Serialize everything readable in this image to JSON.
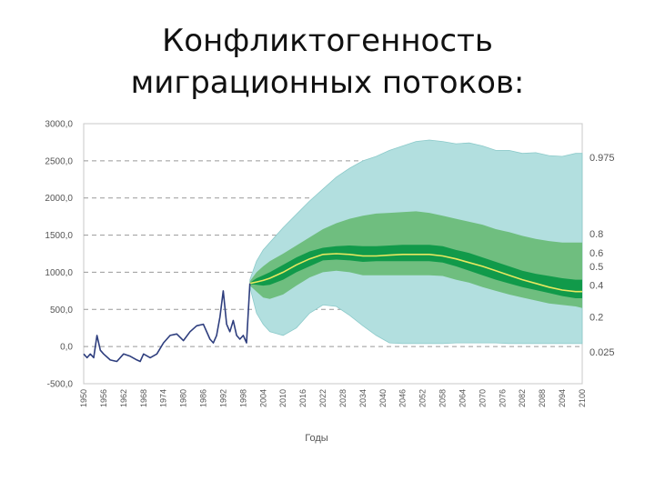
{
  "slide": {
    "title_line1": "Конфликтогенность",
    "title_line2": "миграционных потоков:"
  },
  "colors": {
    "band_outer": "#b2dfdf",
    "band_mid": "#6fbe7f",
    "band_inner": "#119a4a",
    "median": "#e8e860",
    "history": "#2e3e7e",
    "grid": "#999999",
    "frame": "#c8c8c8"
  },
  "chart_data": {
    "type": "area",
    "title": "",
    "xlabel": "Годы",
    "ylabel": "",
    "xlim": [
      1950,
      2100
    ],
    "ylim": [
      -500,
      3000
    ],
    "grid": "dashed horizontal",
    "y_ticks": [
      "3000,0",
      "2500,0",
      "2000,0",
      "1500,0",
      "1000,0",
      "500,0",
      "0,0",
      "-500,0"
    ],
    "y_tick_values": [
      3000,
      2500,
      2000,
      1500,
      1000,
      500,
      0,
      -500
    ],
    "x_ticks": [
      "1950",
      "1956",
      "1962",
      "1968",
      "1974",
      "1980",
      "1986",
      "1992",
      "1998",
      "2004",
      "2010",
      "2016",
      "2022",
      "2028",
      "2034",
      "2040",
      "2046",
      "2052",
      "2058",
      "2064",
      "2070",
      "2076",
      "2082",
      "2088",
      "2094",
      "2100"
    ],
    "historical": {
      "name": "",
      "x": [
        1950,
        1951,
        1952,
        1953,
        1954,
        1955,
        1956,
        1958,
        1960,
        1962,
        1964,
        1966,
        1967,
        1968,
        1970,
        1972,
        1974,
        1976,
        1978,
        1980,
        1982,
        1984,
        1986,
        1988,
        1989,
        1990,
        1991,
        1992,
        1993,
        1994,
        1995,
        1996,
        1997,
        1998,
        1999,
        2000
      ],
      "y": [
        -100,
        -150,
        -100,
        -150,
        150,
        -50,
        -100,
        -180,
        -200,
        -100,
        -130,
        -180,
        -200,
        -100,
        -150,
        -100,
        50,
        150,
        170,
        80,
        200,
        280,
        300,
        100,
        50,
        150,
        400,
        750,
        300,
        200,
        350,
        150,
        100,
        150,
        50,
        850
      ]
    },
    "fan": {
      "x": [
        2000,
        2002,
        2004,
        2006,
        2010,
        2014,
        2018,
        2022,
        2026,
        2030,
        2034,
        2038,
        2042,
        2046,
        2050,
        2054,
        2058,
        2062,
        2066,
        2070,
        2074,
        2078,
        2082,
        2086,
        2090,
        2094,
        2098,
        2100
      ],
      "q975": [
        900,
        1150,
        1300,
        1400,
        1600,
        1780,
        1960,
        2120,
        2280,
        2400,
        2500,
        2560,
        2640,
        2700,
        2760,
        2780,
        2760,
        2730,
        2740,
        2700,
        2640,
        2640,
        2600,
        2610,
        2570,
        2560,
        2600,
        2600
      ],
      "q80": [
        880,
        1000,
        1080,
        1150,
        1250,
        1360,
        1470,
        1580,
        1660,
        1720,
        1760,
        1790,
        1800,
        1810,
        1820,
        1800,
        1760,
        1720,
        1680,
        1640,
        1580,
        1540,
        1490,
        1450,
        1420,
        1400,
        1400,
        1400
      ],
      "q60": [
        860,
        920,
        960,
        1000,
        1100,
        1200,
        1280,
        1330,
        1350,
        1360,
        1350,
        1350,
        1360,
        1370,
        1370,
        1370,
        1350,
        1300,
        1260,
        1200,
        1140,
        1080,
        1020,
        980,
        950,
        920,
        900,
        900
      ],
      "q50": [
        850,
        870,
        890,
        920,
        1000,
        1100,
        1180,
        1240,
        1250,
        1240,
        1220,
        1220,
        1230,
        1240,
        1240,
        1240,
        1220,
        1180,
        1130,
        1080,
        1020,
        960,
        900,
        850,
        800,
        760,
        740,
        740
      ],
      "q40": [
        840,
        830,
        820,
        830,
        900,
        1000,
        1080,
        1160,
        1170,
        1160,
        1140,
        1150,
        1150,
        1150,
        1150,
        1150,
        1130,
        1080,
        1020,
        960,
        900,
        850,
        800,
        760,
        720,
        680,
        650,
        650
      ],
      "q20": [
        820,
        740,
        660,
        640,
        700,
        820,
        930,
        1000,
        1020,
        1000,
        960,
        960,
        960,
        960,
        960,
        960,
        950,
        900,
        860,
        800,
        750,
        700,
        660,
        620,
        580,
        560,
        540,
        520
      ],
      "q025": [
        800,
        450,
        300,
        200,
        150,
        250,
        450,
        560,
        540,
        420,
        280,
        150,
        50,
        40,
        40,
        40,
        40,
        50,
        50,
        50,
        50,
        40,
        40,
        40,
        40,
        40,
        40,
        40
      ]
    },
    "quantile_labels": [
      "0.975",
      "0.8",
      "0.6",
      "0.5",
      "0.4",
      "0.2",
      "0.025"
    ],
    "quantile_label_values": [
      2550,
      1520,
      1260,
      1080,
      830,
      400,
      -70
    ]
  }
}
